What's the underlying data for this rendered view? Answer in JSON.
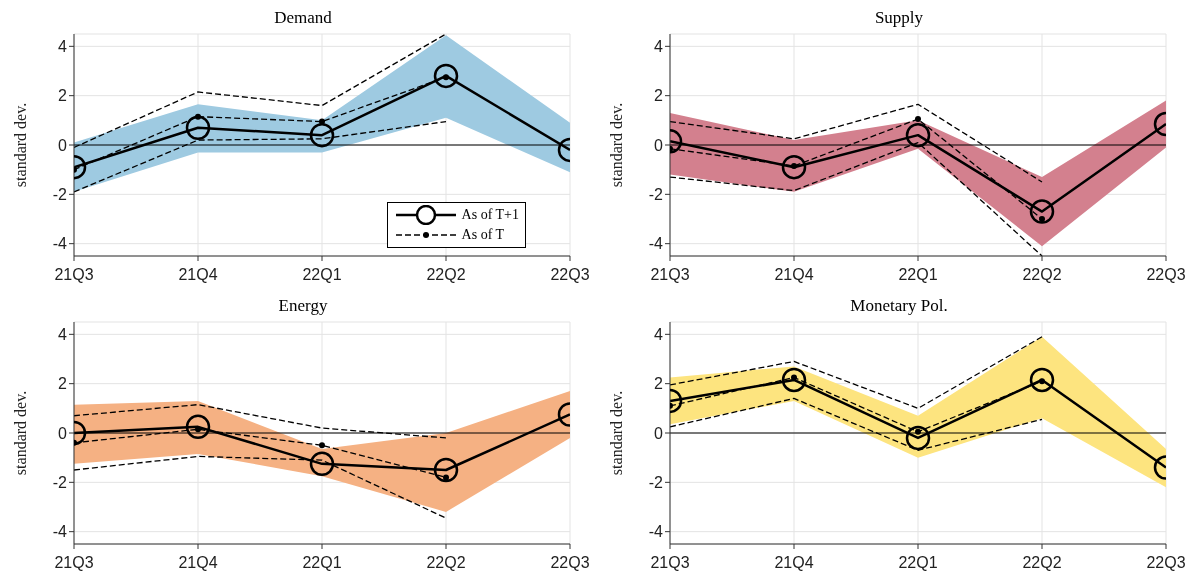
{
  "chart_data": [
    {
      "type": "line",
      "title": "Demand",
      "ylabel": "standard dev.",
      "categories": [
        "21Q3",
        "21Q4",
        "22Q1",
        "22Q2",
        "22Q3"
      ],
      "ylim": [
        -4.5,
        4.5
      ],
      "yticks": [
        -4,
        -2,
        0,
        2,
        4
      ],
      "grid": true,
      "legend": "bottom right",
      "ref_lines": [
        {
          "axis": "y",
          "value": 0,
          "color": "#000000"
        }
      ],
      "series": [
        {
          "type": "area",
          "color": "#9ecae1",
          "values": [
            null,
            null,
            null,
            null,
            null
          ],
          "lower": [
            -1.9,
            -0.3,
            -0.3,
            1.1,
            -1.1
          ],
          "upper": [
            0.1,
            1.65,
            1.0,
            4.45,
            0.9
          ]
        },
        {
          "color": "#000000",
          "line_style": "dashed",
          "marker": "none",
          "values": [
            -0.1,
            2.15,
            1.6,
            4.5,
            null
          ]
        },
        {
          "color": "#000000",
          "line_style": "dashed",
          "marker": "none",
          "values": [
            -1.9,
            0.2,
            0.25,
            0.95,
            null
          ]
        },
        {
          "name": "As of T",
          "color": "#000000",
          "line_style": "dashed",
          "marker": "circle",
          "values": [
            -1.0,
            1.15,
            0.95,
            2.75,
            null
          ]
        },
        {
          "name": "As of T+1",
          "color": "#000000",
          "line_style": "solid",
          "marker": "circle",
          "values": [
            -0.9,
            0.7,
            0.4,
            2.8,
            -0.2
          ]
        }
      ]
    },
    {
      "type": "line",
      "title": "Supply",
      "ylabel": "standard dev.",
      "categories": [
        "21Q3",
        "21Q4",
        "22Q1",
        "22Q2",
        "22Q3"
      ],
      "ylim": [
        -4.5,
        4.5
      ],
      "yticks": [
        -4,
        -2,
        0,
        2,
        4
      ],
      "grid": true,
      "ref_lines": [
        {
          "axis": "y",
          "value": 0,
          "color": "#000000"
        }
      ],
      "series": [
        {
          "type": "area",
          "color": "#d3808e",
          "values": [
            null,
            null,
            null,
            null,
            null
          ],
          "lower": [
            -1.2,
            -1.9,
            -0.15,
            -4.1,
            -0.1
          ],
          "upper": [
            1.3,
            0.2,
            1.0,
            -1.3,
            1.8
          ]
        },
        {
          "color": "#000000",
          "line_style": "dashed",
          "marker": "none",
          "values": [
            0.95,
            0.25,
            1.65,
            -1.5,
            null
          ]
        },
        {
          "color": "#000000",
          "line_style": "dashed",
          "marker": "none",
          "values": [
            -1.3,
            -1.85,
            0.1,
            -4.5,
            null
          ]
        },
        {
          "color": "#000000",
          "line_style": "dashed",
          "marker": "circle",
          "values": [
            -0.15,
            -0.85,
            1.05,
            -3.0,
            null
          ]
        },
        {
          "color": "#000000",
          "line_style": "solid",
          "marker": "circle",
          "values": [
            0.15,
            -0.9,
            0.4,
            -2.7,
            0.85
          ]
        }
      ]
    },
    {
      "type": "line",
      "title": "Energy",
      "ylabel": "standard dev.",
      "categories": [
        "21Q3",
        "21Q4",
        "22Q1",
        "22Q2",
        "22Q3"
      ],
      "ylim": [
        -4.5,
        4.5
      ],
      "yticks": [
        -4,
        -2,
        0,
        2,
        4
      ],
      "grid": true,
      "ref_lines": [
        {
          "axis": "y",
          "value": 0,
          "color": "#000000"
        }
      ],
      "series": [
        {
          "type": "area",
          "color": "#f5b183",
          "values": [
            null,
            null,
            null,
            null,
            null
          ],
          "lower": [
            -1.25,
            -0.85,
            -1.75,
            -3.2,
            -0.2
          ],
          "upper": [
            1.15,
            1.3,
            -0.65,
            0.0,
            1.7
          ]
        },
        {
          "color": "#000000",
          "line_style": "dashed",
          "marker": "none",
          "values": [
            0.7,
            1.15,
            0.2,
            -0.2,
            null
          ]
        },
        {
          "color": "#000000",
          "line_style": "dashed",
          "marker": "none",
          "values": [
            -1.5,
            -0.95,
            -1.1,
            -3.45,
            null
          ]
        },
        {
          "color": "#000000",
          "line_style": "dashed",
          "marker": "circle",
          "values": [
            -0.4,
            0.15,
            -0.5,
            -1.8,
            null
          ]
        },
        {
          "color": "#000000",
          "line_style": "solid",
          "marker": "circle",
          "values": [
            0.0,
            0.25,
            -1.25,
            -1.5,
            0.75
          ]
        }
      ]
    },
    {
      "type": "line",
      "title": "Monetary Pol.",
      "ylabel": "standard dev.",
      "categories": [
        "21Q3",
        "21Q4",
        "22Q1",
        "22Q2",
        "22Q3"
      ],
      "ylim": [
        -4.5,
        4.5
      ],
      "yticks": [
        -4,
        -2,
        0,
        2,
        4
      ],
      "grid": true,
      "ref_lines": [
        {
          "axis": "y",
          "value": 0,
          "color": "#000000"
        }
      ],
      "series": [
        {
          "type": "area",
          "color": "#fde47f",
          "values": [
            null,
            null,
            null,
            null,
            null
          ],
          "lower": [
            0.35,
            1.3,
            -1.0,
            0.6,
            -2.2
          ],
          "upper": [
            2.25,
            2.7,
            0.7,
            3.9,
            -0.65
          ]
        },
        {
          "color": "#000000",
          "line_style": "dashed",
          "marker": "none",
          "values": [
            1.95,
            2.9,
            1.0,
            3.9,
            null
          ]
        },
        {
          "color": "#000000",
          "line_style": "dashed",
          "marker": "none",
          "values": [
            0.25,
            1.4,
            -0.7,
            0.55,
            null
          ]
        },
        {
          "color": "#000000",
          "line_style": "dashed",
          "marker": "circle",
          "values": [
            1.1,
            2.25,
            0.05,
            2.1,
            null
          ]
        },
        {
          "color": "#000000",
          "line_style": "solid",
          "marker": "circle",
          "values": [
            1.3,
            2.15,
            -0.2,
            2.15,
            -1.4
          ]
        }
      ]
    }
  ]
}
